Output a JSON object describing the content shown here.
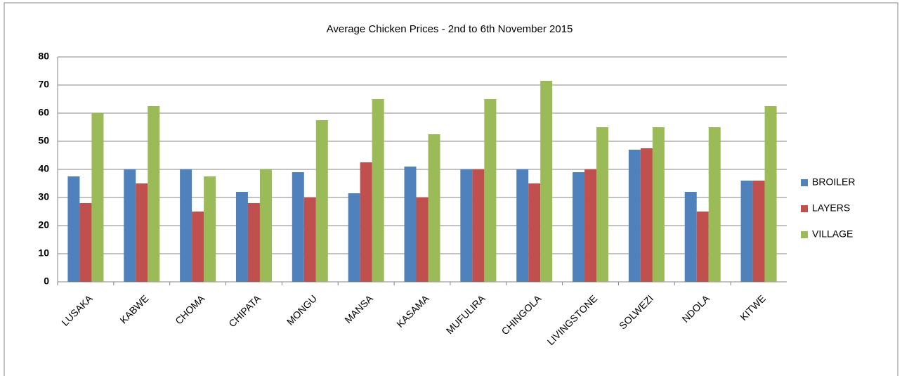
{
  "chart_data": {
    "type": "bar",
    "title": "Average Chicken Prices - 2nd to  6th November 2015",
    "categories": [
      "LUSAKA",
      "KABWE",
      "CHOMA",
      "CHIPATA",
      "MONGU",
      "MANSA",
      "KASAMA",
      "MUFULIRA",
      "CHINGOLA",
      "LIVINGSTONE",
      "SOLWEZI",
      "NDOLA",
      "KITWE"
    ],
    "series": [
      {
        "name": "BROILER",
        "color": "#4f81bd",
        "values": [
          37.5,
          40,
          40,
          32,
          39,
          31.5,
          41,
          40,
          40,
          39,
          47,
          32,
          36
        ]
      },
      {
        "name": "LAYERS",
        "color": "#c0504d",
        "values": [
          28,
          35,
          25,
          28,
          30,
          42.5,
          30,
          40,
          35,
          40,
          47.5,
          25,
          36
        ]
      },
      {
        "name": "VILLAGE",
        "color": "#9bbb59",
        "values": [
          60,
          62.5,
          37.5,
          40,
          57.5,
          65,
          52.5,
          65,
          71.5,
          55,
          55,
          55,
          62.5
        ]
      }
    ],
    "ylim": [
      0,
      80
    ],
    "yticks": [
      0,
      10,
      20,
      30,
      40,
      50,
      60,
      70,
      80
    ],
    "grid": true,
    "legend": "right"
  }
}
